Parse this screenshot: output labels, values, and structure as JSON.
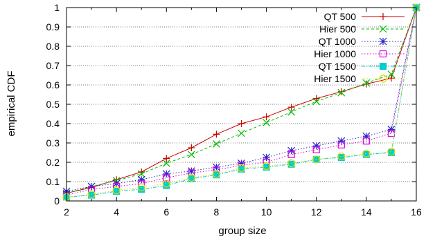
{
  "chart_data": {
    "type": "line",
    "title": "",
    "xlabel": "group size",
    "ylabel": "empirical CDF",
    "xlim": [
      2,
      16
    ],
    "ylim": [
      0,
      1
    ],
    "xticks": [
      "2",
      "4",
      "6",
      "8",
      "10",
      "12",
      "14",
      "16"
    ],
    "yticks": [
      "0",
      "0.1",
      "0.2",
      "0.3",
      "0.4",
      "0.5",
      "0.6",
      "0.7",
      "0.8",
      "0.9",
      "1"
    ],
    "grid": "horizontal dotted",
    "legend_position": "top-right",
    "x": [
      2,
      3,
      4,
      5,
      6,
      7,
      8,
      9,
      10,
      11,
      12,
      13,
      14,
      15,
      16
    ],
    "series": [
      {
        "name": "QT 500",
        "color": "#cc0000",
        "marker": "plus",
        "dash": "solid",
        "values": [
          0.04,
          0.07,
          0.11,
          0.15,
          0.22,
          0.275,
          0.345,
          0.4,
          0.435,
          0.485,
          0.53,
          0.565,
          0.605,
          0.635,
          1.0
        ]
      },
      {
        "name": "Hier 500",
        "color": "#00bb00",
        "marker": "cross",
        "dash": "dash",
        "values": [
          0.04,
          0.075,
          0.105,
          0.14,
          0.195,
          0.24,
          0.295,
          0.35,
          0.405,
          0.46,
          0.515,
          0.56,
          0.61,
          0.655,
          1.0
        ]
      },
      {
        "name": "QT 1000",
        "color": "#2222cc",
        "marker": "star",
        "dash": "dot",
        "values": [
          0.05,
          0.075,
          0.09,
          0.11,
          0.14,
          0.155,
          0.175,
          0.195,
          0.225,
          0.26,
          0.285,
          0.31,
          0.335,
          0.37,
          1.0
        ]
      },
      {
        "name": "Hier 1000",
        "color": "#dd00dd",
        "marker": "square-open",
        "dash": "dot",
        "values": [
          0.03,
          0.06,
          0.075,
          0.09,
          0.12,
          0.145,
          0.16,
          0.185,
          0.2,
          0.24,
          0.265,
          0.29,
          0.31,
          0.35,
          1.0
        ]
      },
      {
        "name": "QT 1500",
        "color": "#00cccc",
        "marker": "square-filled",
        "dash": "dashdot",
        "values": [
          0.02,
          0.03,
          0.05,
          0.06,
          0.08,
          0.115,
          0.135,
          0.165,
          0.175,
          0.19,
          0.215,
          0.225,
          0.24,
          0.25,
          1.0
        ]
      },
      {
        "name": "Hier 1500",
        "color": "#dddd00",
        "marker": "circle-open",
        "dash": "dot",
        "values": [
          0.02,
          0.035,
          0.055,
          0.07,
          0.09,
          0.12,
          0.14,
          0.17,
          0.18,
          0.195,
          0.215,
          0.23,
          0.245,
          0.255,
          1.0
        ]
      }
    ]
  }
}
